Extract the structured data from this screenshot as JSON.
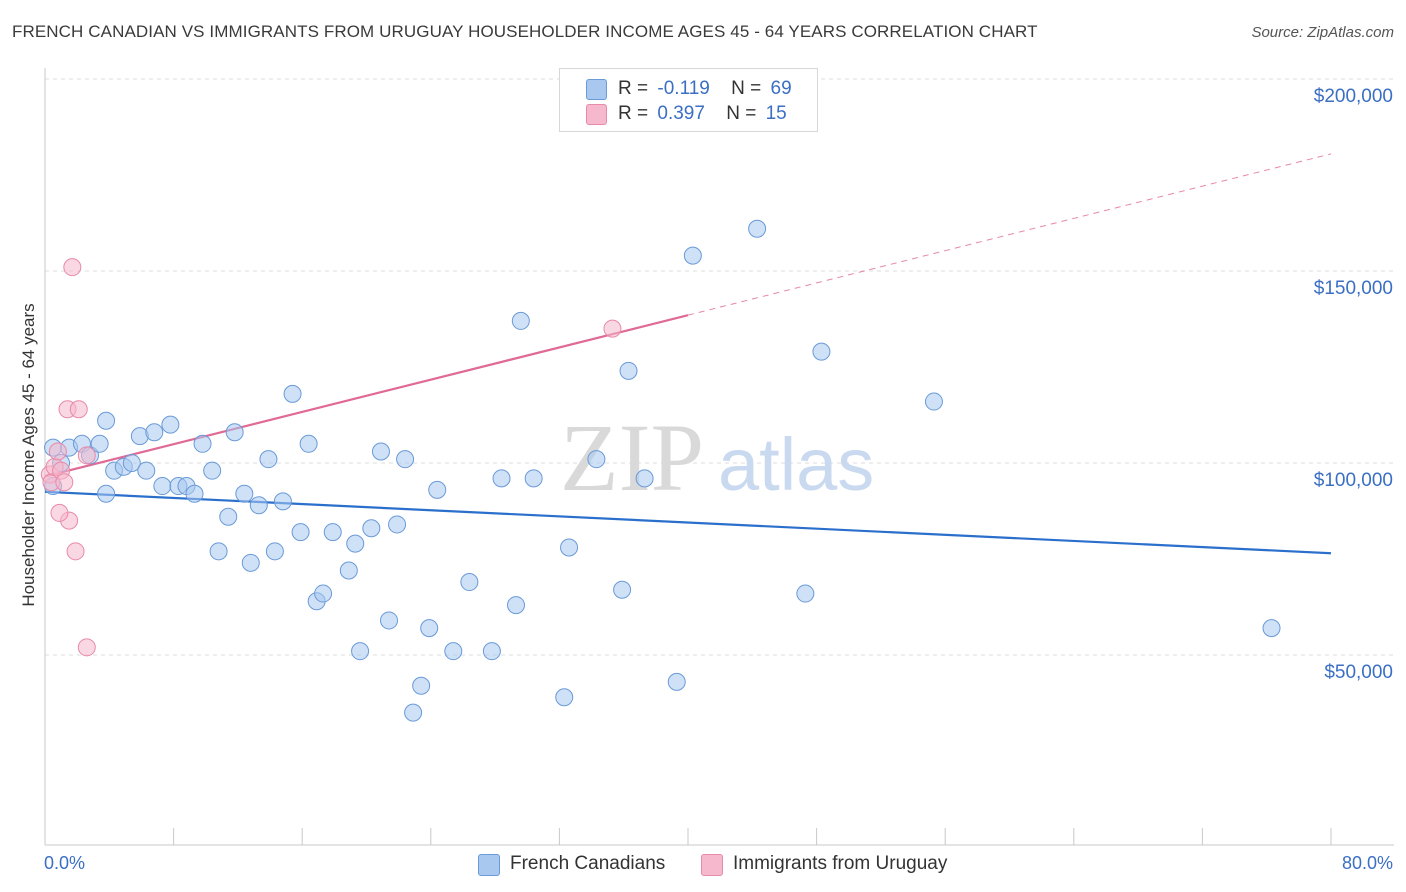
{
  "header": {
    "title": "FRENCH CANADIAN VS IMMIGRANTS FROM URUGUAY HOUSEHOLDER INCOME AGES 45 - 64 YEARS CORRELATION CHART",
    "source": "Source: ZipAtlas.com"
  },
  "watermark": {
    "zip": "ZIP",
    "atlas": "atlas"
  },
  "legend": {
    "rows": [
      {
        "r_label": "R =",
        "r_value": "-0.119",
        "n_label": "N =",
        "n_value": "69",
        "color": "#a8c8f0"
      },
      {
        "r_label": "R =",
        "r_value": "0.397",
        "n_label": "N =",
        "n_value": "15",
        "color": "#f5b8cc"
      }
    ]
  },
  "chart_data": {
    "type": "scatter",
    "title": "FRENCH CANADIAN VS IMMIGRANTS FROM URUGUAY HOUSEHOLDER INCOME AGES 45 - 64 YEARS CORRELATION CHART",
    "xlabel": "",
    "ylabel": "Householder Income Ages 45 - 64 years",
    "xlim": [
      0,
      80
    ],
    "ylim": [
      0,
      205000
    ],
    "x_tick_labels": [
      "0.0%",
      "80.0%"
    ],
    "y_ticks": [
      50000,
      100000,
      150000,
      200000
    ],
    "y_tick_labels": [
      "$50,000",
      "$100,000",
      "$150,000",
      "$200,000"
    ],
    "grid": true,
    "legend_position": "top-center",
    "series": [
      {
        "name": "French Canadians",
        "color": "#a8c8f0",
        "stroke": "#6a9ad8",
        "trend": {
          "x": [
            0,
            80
          ],
          "y": [
            92500,
            76500
          ],
          "color": "#2b6fcc",
          "dashed_from": null
        },
        "points": [
          [
            0.5,
            104000
          ],
          [
            0.5,
            94000
          ],
          [
            1.0,
            100000
          ],
          [
            1.5,
            104000
          ],
          [
            2.3,
            105000
          ],
          [
            2.8,
            102000
          ],
          [
            3.4,
            105000
          ],
          [
            3.8,
            111000
          ],
          [
            4.3,
            98000
          ],
          [
            4.9,
            99000
          ],
          [
            5.4,
            100000
          ],
          [
            5.9,
            107000
          ],
          [
            6.3,
            98000
          ],
          [
            6.8,
            108000
          ],
          [
            7.3,
            94000
          ],
          [
            7.8,
            110000
          ],
          [
            8.3,
            94000
          ],
          [
            8.8,
            94000
          ],
          [
            9.3,
            92000
          ],
          [
            9.8,
            105000
          ],
          [
            10.4,
            98000
          ],
          [
            10.8,
            77000
          ],
          [
            11.4,
            86000
          ],
          [
            11.8,
            108000
          ],
          [
            12.4,
            92000
          ],
          [
            12.8,
            74000
          ],
          [
            13.3,
            89000
          ],
          [
            13.9,
            101000
          ],
          [
            14.3,
            77000
          ],
          [
            14.8,
            90000
          ],
          [
            15.4,
            118000
          ],
          [
            15.9,
            82000
          ],
          [
            16.4,
            105000
          ],
          [
            16.9,
            64000
          ],
          [
            17.3,
            66000
          ],
          [
            17.9,
            82000
          ],
          [
            18.9,
            72000
          ],
          [
            19.3,
            79000
          ],
          [
            19.6,
            51000
          ],
          [
            20.3,
            83000
          ],
          [
            20.9,
            103000
          ],
          [
            21.4,
            59000
          ],
          [
            21.9,
            84000
          ],
          [
            22.4,
            101000
          ],
          [
            22.9,
            35000
          ],
          [
            23.4,
            42000
          ],
          [
            23.9,
            57000
          ],
          [
            24.4,
            93000
          ],
          [
            25.4,
            51000
          ],
          [
            26.4,
            69000
          ],
          [
            27.8,
            51000
          ],
          [
            28.4,
            96000
          ],
          [
            29.3,
            63000
          ],
          [
            29.6,
            137000
          ],
          [
            30.4,
            96000
          ],
          [
            32.3,
            39000
          ],
          [
            32.6,
            78000
          ],
          [
            34.3,
            101000
          ],
          [
            35.9,
            67000
          ],
          [
            36.3,
            124000
          ],
          [
            37.3,
            96000
          ],
          [
            39.3,
            43000
          ],
          [
            40.3,
            154000
          ],
          [
            44.3,
            161000
          ],
          [
            47.3,
            66000
          ],
          [
            48.3,
            129000
          ],
          [
            55.3,
            116000
          ],
          [
            76.3,
            57000
          ],
          [
            3.8,
            92000
          ]
        ]
      },
      {
        "name": "Immigrants from Uruguay",
        "color": "#f5b8cc",
        "stroke": "#e88aa8",
        "trend": {
          "x": [
            0,
            80
          ],
          "y": [
            96500,
            180500
          ],
          "color": "#e06a95",
          "dashed_from": 40
        },
        "points": [
          [
            0.3,
            97000
          ],
          [
            0.4,
            95000
          ],
          [
            0.6,
            99000
          ],
          [
            0.8,
            103000
          ],
          [
            1.0,
            98000
          ],
          [
            1.2,
            95000
          ],
          [
            1.4,
            114000
          ],
          [
            1.5,
            85000
          ],
          [
            1.7,
            151000
          ],
          [
            1.9,
            77000
          ],
          [
            2.1,
            114000
          ],
          [
            2.6,
            102000
          ],
          [
            2.6,
            52000
          ],
          [
            0.9,
            87000
          ],
          [
            35.3,
            135000
          ]
        ]
      }
    ]
  },
  "bottom_legend": [
    {
      "label": "French Canadians",
      "color": "#a8c8f0"
    },
    {
      "label": "Immigrants from Uruguay",
      "color": "#f5b8cc"
    }
  ]
}
